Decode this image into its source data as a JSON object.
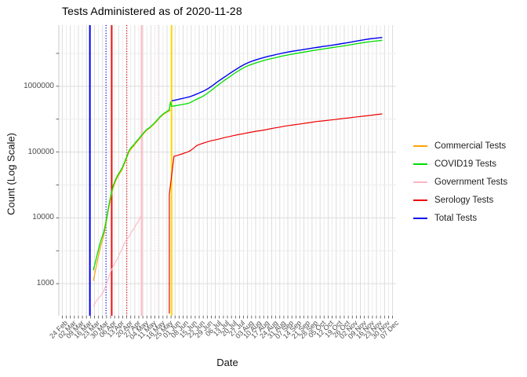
{
  "chart": {
    "title": "Tests Administered as of 2020-11-28",
    "x_axis": {
      "label": "Date",
      "tick_labels": [
        "24 Feb",
        "02 Mar",
        "09 Mar",
        "16 Mar",
        "23 Mar",
        "30 Mar",
        "06 Apr",
        "13 Apr",
        "20 Apr",
        "27 Apr",
        "04 May",
        "11 May",
        "18 May",
        "25 May",
        "01 Jun",
        "08 Jun",
        "15 Jun",
        "22 Jun",
        "29 Jun",
        "06 Jul",
        "13 Jul",
        "20 Jul",
        "27 Jul",
        "03 Aug",
        "10 Aug",
        "17 Aug",
        "24 Aug",
        "31 Aug",
        "07 Sep",
        "14 Sep",
        "21 Sep",
        "28 Sep",
        "05 Oct",
        "12 Oct",
        "19 Oct",
        "26 Oct",
        "02 Nov",
        "09 Nov",
        "16 Nov",
        "23 Nov",
        "30 Nov",
        "07 Dec"
      ]
    },
    "y_axis": {
      "label": "Count (Log Scale)",
      "tick_labels": [
        "1000",
        "10000",
        "100000",
        "1000000"
      ],
      "scale": "log"
    },
    "colors": {
      "grid_major": "#dcdcdc",
      "grid_minor": "#ececec",
      "axis_line": "#c9c9c9",
      "tick_mark": "#474747",
      "background": "#ffffff"
    }
  },
  "chart_data": {
    "type": "line",
    "title": "Tests Administered as of 2020-11-28",
    "xlabel": "Date",
    "ylabel": "Count (Log Scale)",
    "yscale": "log",
    "ylim": [
      325,
      8500000
    ],
    "xlim": [
      "2020-02-21",
      "2020-12-10"
    ],
    "grid": "on",
    "legend_position": "right",
    "x_tick_dates": [
      "2020-02-24",
      "2020-03-02",
      "2020-03-09",
      "2020-03-16",
      "2020-03-23",
      "2020-03-30",
      "2020-04-06",
      "2020-04-13",
      "2020-04-20",
      "2020-04-27",
      "2020-05-04",
      "2020-05-11",
      "2020-05-18",
      "2020-05-25",
      "2020-06-01",
      "2020-06-08",
      "2020-06-15",
      "2020-06-22",
      "2020-06-29",
      "2020-07-06",
      "2020-07-13",
      "2020-07-20",
      "2020-07-27",
      "2020-08-03",
      "2020-08-10",
      "2020-08-17",
      "2020-08-24",
      "2020-08-31",
      "2020-09-07",
      "2020-09-14",
      "2020-09-21",
      "2020-09-28",
      "2020-10-05",
      "2020-10-12",
      "2020-10-19",
      "2020-10-26",
      "2020-11-02",
      "2020-11-09",
      "2020-11-16",
      "2020-11-23",
      "2020-11-30",
      "2020-12-07"
    ],
    "y_tick_values": [
      1000,
      10000,
      100000,
      1000000
    ],
    "y_minor_values": [
      3162,
      31623,
      316228,
      3162278
    ],
    "series": [
      {
        "name": "Commercial Tests",
        "color": "#FFA500",
        "width": 1.2,
        "points": [
          [
            "2020-03-22",
            1100
          ],
          [
            "2020-03-25",
            2000
          ],
          [
            "2020-03-28",
            3500
          ],
          [
            "2020-03-31",
            5300
          ],
          [
            "2020-04-02",
            8000
          ],
          [
            "2020-04-04",
            13000
          ],
          [
            "2020-04-06",
            19500
          ],
          [
            "2020-04-08",
            28000
          ],
          [
            "2020-04-10",
            35000
          ],
          [
            "2020-04-12",
            41500
          ],
          [
            "2020-04-14",
            47500
          ],
          [
            "2020-04-16",
            54000
          ],
          [
            "2020-04-18",
            66000
          ],
          [
            "2020-04-20",
            81000
          ],
          [
            "2020-04-22",
            100000
          ],
          [
            "2020-04-24",
            113000
          ],
          [
            "2020-04-26",
            123000
          ],
          [
            "2020-04-28",
            137000
          ],
          [
            "2020-05-01",
            158000
          ],
          [
            "2020-05-04",
            184000
          ],
          [
            "2020-05-07",
            212000
          ],
          [
            "2020-05-10",
            231000
          ],
          [
            "2020-05-13",
            258000
          ],
          [
            "2020-05-16",
            292000
          ],
          [
            "2020-05-19",
            336000
          ],
          [
            "2020-05-22",
            375000
          ],
          [
            "2020-05-25",
            405000
          ],
          [
            "2020-05-28",
            430000
          ]
        ]
      },
      {
        "name": "Government Tests",
        "color": "#FFB6C1",
        "width": 1.1,
        "points": [
          [
            "2020-03-22",
            450
          ],
          [
            "2020-03-25",
            560
          ],
          [
            "2020-03-28",
            640
          ],
          [
            "2020-03-31",
            760
          ],
          [
            "2020-04-02",
            950
          ],
          [
            "2020-04-04",
            1200
          ],
          [
            "2020-04-06",
            1500
          ],
          [
            "2020-04-08",
            1800
          ],
          [
            "2020-04-10",
            2100
          ],
          [
            "2020-04-12",
            2400
          ],
          [
            "2020-04-14",
            2900
          ],
          [
            "2020-04-16",
            3400
          ],
          [
            "2020-04-18",
            4100
          ],
          [
            "2020-04-20",
            4700
          ],
          [
            "2020-04-22",
            5200
          ],
          [
            "2020-04-24",
            6000
          ],
          [
            "2020-04-26",
            6800
          ],
          [
            "2020-04-28",
            7700
          ],
          [
            "2020-04-30",
            8900
          ],
          [
            "2020-05-02",
            10200
          ],
          [
            "2020-05-03",
            10800
          ]
        ]
      },
      {
        "name": "COVID19 Tests",
        "color": "#00DC00",
        "width": 1.3,
        "points": [
          [
            "2020-03-22",
            1600
          ],
          [
            "2020-03-25",
            2600
          ],
          [
            "2020-03-28",
            4200
          ],
          [
            "2020-03-31",
            6000
          ],
          [
            "2020-04-02",
            8800
          ],
          [
            "2020-04-04",
            14000
          ],
          [
            "2020-04-06",
            21000
          ],
          [
            "2020-04-08",
            30000
          ],
          [
            "2020-04-10",
            37000
          ],
          [
            "2020-04-12",
            44000
          ],
          [
            "2020-04-14",
            50000
          ],
          [
            "2020-04-16",
            57000
          ],
          [
            "2020-04-18",
            70000
          ],
          [
            "2020-04-20",
            85000
          ],
          [
            "2020-04-22",
            105000
          ],
          [
            "2020-04-24",
            118000
          ],
          [
            "2020-04-26",
            128000
          ],
          [
            "2020-04-28",
            142000
          ],
          [
            "2020-05-01",
            163000
          ],
          [
            "2020-05-04",
            190000
          ],
          [
            "2020-05-07",
            218000
          ],
          [
            "2020-05-10",
            237000
          ],
          [
            "2020-05-13",
            265000
          ],
          [
            "2020-05-16",
            300000
          ],
          [
            "2020-05-19",
            345000
          ],
          [
            "2020-05-22",
            385000
          ],
          [
            "2020-05-25",
            415000
          ],
          [
            "2020-05-27",
            440000
          ],
          [
            "2020-05-28",
            585000
          ],
          [
            "2020-05-29",
            495000
          ],
          [
            "2020-06-01",
            505000
          ],
          [
            "2020-06-05",
            520000
          ],
          [
            "2020-06-09",
            535000
          ],
          [
            "2020-06-13",
            553000
          ],
          [
            "2020-06-17",
            600000
          ],
          [
            "2020-06-21",
            650000
          ],
          [
            "2020-06-25",
            700000
          ],
          [
            "2020-06-29",
            780000
          ],
          [
            "2020-07-03",
            880000
          ],
          [
            "2020-07-07",
            1000000
          ],
          [
            "2020-07-11",
            1130000
          ],
          [
            "2020-07-15",
            1270000
          ],
          [
            "2020-07-19",
            1420000
          ],
          [
            "2020-07-23",
            1590000
          ],
          [
            "2020-07-27",
            1760000
          ],
          [
            "2020-07-31",
            1930000
          ],
          [
            "2020-08-04",
            2080000
          ],
          [
            "2020-08-08",
            2200000
          ],
          [
            "2020-08-12",
            2320000
          ],
          [
            "2020-08-16",
            2430000
          ],
          [
            "2020-08-20",
            2540000
          ],
          [
            "2020-08-24",
            2640000
          ],
          [
            "2020-08-28",
            2740000
          ],
          [
            "2020-09-01",
            2850000
          ],
          [
            "2020-09-05",
            2950000
          ],
          [
            "2020-09-09",
            3040000
          ],
          [
            "2020-09-13",
            3130000
          ],
          [
            "2020-09-17",
            3220000
          ],
          [
            "2020-09-21",
            3310000
          ],
          [
            "2020-09-25",
            3400000
          ],
          [
            "2020-09-29",
            3500000
          ],
          [
            "2020-10-03",
            3590000
          ],
          [
            "2020-10-07",
            3680000
          ],
          [
            "2020-10-11",
            3770000
          ],
          [
            "2020-10-15",
            3860000
          ],
          [
            "2020-10-19",
            3950000
          ],
          [
            "2020-10-23",
            4050000
          ],
          [
            "2020-10-27",
            4150000
          ],
          [
            "2020-10-31",
            4260000
          ],
          [
            "2020-11-04",
            4380000
          ],
          [
            "2020-11-08",
            4500000
          ],
          [
            "2020-11-12",
            4620000
          ],
          [
            "2020-11-16",
            4720000
          ],
          [
            "2020-11-20",
            4820000
          ],
          [
            "2020-11-24",
            4910000
          ],
          [
            "2020-11-28",
            5000000
          ]
        ]
      },
      {
        "name": "Serology Tests",
        "color": "#EE0000",
        "width": 1.2,
        "points": [
          [
            "2020-05-27",
            350
          ],
          [
            "2020-05-27",
            22500
          ],
          [
            "2020-05-31",
            86000
          ],
          [
            "2020-06-04",
            90000
          ],
          [
            "2020-06-08",
            95000
          ],
          [
            "2020-06-11",
            99000
          ],
          [
            "2020-06-14",
            104000
          ],
          [
            "2020-06-17",
            114000
          ],
          [
            "2020-06-20",
            126000
          ],
          [
            "2020-06-24",
            134000
          ],
          [
            "2020-06-28",
            141000
          ],
          [
            "2020-07-02",
            148000
          ],
          [
            "2020-07-06",
            153000
          ],
          [
            "2020-07-10",
            159000
          ],
          [
            "2020-07-14",
            166000
          ],
          [
            "2020-07-18",
            172000
          ],
          [
            "2020-07-22",
            178000
          ],
          [
            "2020-07-26",
            184000
          ],
          [
            "2020-07-30",
            190000
          ],
          [
            "2020-08-03",
            196000
          ],
          [
            "2020-08-07",
            202000
          ],
          [
            "2020-08-11",
            208000
          ],
          [
            "2020-08-15",
            213000
          ],
          [
            "2020-08-19",
            219000
          ],
          [
            "2020-08-23",
            226000
          ],
          [
            "2020-08-27",
            233000
          ],
          [
            "2020-08-31",
            240000
          ],
          [
            "2020-09-04",
            247000
          ],
          [
            "2020-09-08",
            253000
          ],
          [
            "2020-09-12",
            259000
          ],
          [
            "2020-09-16",
            265000
          ],
          [
            "2020-09-20",
            271000
          ],
          [
            "2020-09-24",
            277000
          ],
          [
            "2020-09-28",
            284000
          ],
          [
            "2020-10-02",
            291000
          ],
          [
            "2020-10-06",
            296000
          ],
          [
            "2020-10-10",
            301000
          ],
          [
            "2020-10-14",
            307000
          ],
          [
            "2020-10-18",
            312000
          ],
          [
            "2020-10-22",
            319000
          ],
          [
            "2020-10-26",
            325000
          ],
          [
            "2020-10-30",
            331000
          ],
          [
            "2020-11-03",
            338000
          ],
          [
            "2020-11-07",
            344000
          ],
          [
            "2020-11-11",
            350000
          ],
          [
            "2020-11-15",
            356000
          ],
          [
            "2020-11-19",
            364000
          ],
          [
            "2020-11-23",
            371000
          ],
          [
            "2020-11-28",
            380000
          ]
        ]
      },
      {
        "name": "Total Tests",
        "color": "#0000EE",
        "width": 1.4,
        "points": [
          [
            "2020-05-29",
            600000
          ],
          [
            "2020-06-02",
            620000
          ],
          [
            "2020-06-06",
            645000
          ],
          [
            "2020-06-10",
            668000
          ],
          [
            "2020-06-14",
            695000
          ],
          [
            "2020-06-18",
            740000
          ],
          [
            "2020-06-22",
            790000
          ],
          [
            "2020-06-26",
            850000
          ],
          [
            "2020-06-30",
            930000
          ],
          [
            "2020-07-04",
            1040000
          ],
          [
            "2020-07-08",
            1170000
          ],
          [
            "2020-07-12",
            1310000
          ],
          [
            "2020-07-16",
            1460000
          ],
          [
            "2020-07-20",
            1630000
          ],
          [
            "2020-07-24",
            1810000
          ],
          [
            "2020-07-28",
            2000000
          ],
          [
            "2020-08-01",
            2180000
          ],
          [
            "2020-08-05",
            2340000
          ],
          [
            "2020-08-09",
            2480000
          ],
          [
            "2020-08-13",
            2610000
          ],
          [
            "2020-08-17",
            2730000
          ],
          [
            "2020-08-21",
            2850000
          ],
          [
            "2020-08-25",
            2960000
          ],
          [
            "2020-08-29",
            3070000
          ],
          [
            "2020-09-02",
            3180000
          ],
          [
            "2020-09-06",
            3280000
          ],
          [
            "2020-09-10",
            3380000
          ],
          [
            "2020-09-14",
            3470000
          ],
          [
            "2020-09-18",
            3560000
          ],
          [
            "2020-09-22",
            3650000
          ],
          [
            "2020-09-26",
            3750000
          ],
          [
            "2020-09-30",
            3850000
          ],
          [
            "2020-10-04",
            3940000
          ],
          [
            "2020-10-08",
            4030000
          ],
          [
            "2020-10-12",
            4130000
          ],
          [
            "2020-10-16",
            4230000
          ],
          [
            "2020-10-20",
            4330000
          ],
          [
            "2020-10-24",
            4450000
          ],
          [
            "2020-10-28",
            4570000
          ],
          [
            "2020-11-01",
            4700000
          ],
          [
            "2020-11-05",
            4850000
          ],
          [
            "2020-11-09",
            4990000
          ],
          [
            "2020-11-13",
            5130000
          ],
          [
            "2020-11-17",
            5250000
          ],
          [
            "2020-11-21",
            5360000
          ],
          [
            "2020-11-25",
            5450000
          ],
          [
            "2020-11-28",
            5520000
          ]
        ]
      }
    ],
    "vlines": [
      {
        "date": "2020-03-19",
        "color": "#0000FF",
        "style": "solid",
        "width": 2
      },
      {
        "date": "2020-04-02",
        "color": "#0000FF",
        "style": "dotted",
        "width": 1.4
      },
      {
        "date": "2020-04-07",
        "color": "#EE0000",
        "style": "solid",
        "width": 1.8
      },
      {
        "date": "2020-04-20",
        "color": "#EE0000",
        "style": "dotted",
        "width": 1.4
      },
      {
        "date": "2020-05-03",
        "color": "#FFC0CB",
        "style": "solid",
        "width": 2.5
      },
      {
        "date": "2020-05-17",
        "color": "#FFD4DC",
        "style": "dotted",
        "width": 1.4
      },
      {
        "date": "2020-05-29",
        "color": "#FFD700",
        "style": "solid",
        "width": 2
      }
    ]
  }
}
